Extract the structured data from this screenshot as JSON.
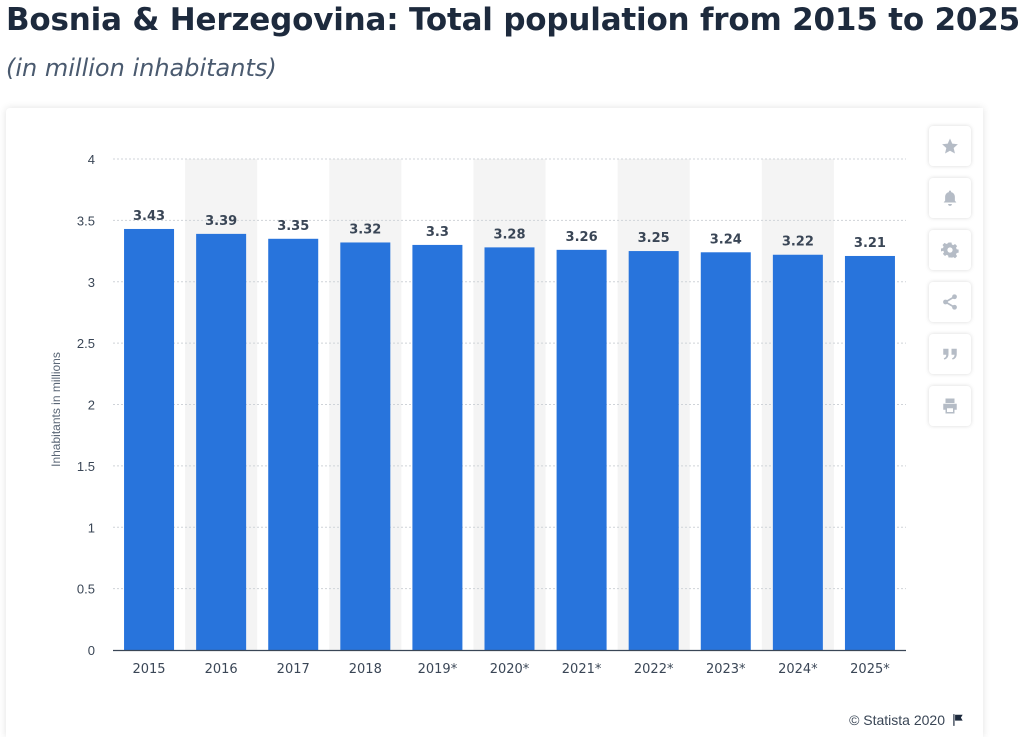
{
  "header": {
    "title": "Bosnia & Herzegovina: Total population from 2015 to 2025",
    "subtitle": "(in million inhabitants)"
  },
  "chart_data": {
    "type": "bar",
    "title": "Bosnia & Herzegovina: Total population from 2015 to 2025",
    "subtitle": "(in million inhabitants)",
    "xlabel": "",
    "ylabel": "Inhabitants in millions",
    "categories": [
      "2015",
      "2016",
      "2017",
      "2018",
      "2019*",
      "2020*",
      "2021*",
      "2022*",
      "2023*",
      "2024*",
      "2025*"
    ],
    "values": [
      3.43,
      3.39,
      3.35,
      3.32,
      3.3,
      3.28,
      3.26,
      3.25,
      3.24,
      3.22,
      3.21
    ],
    "data_labels": [
      "3.43",
      "3.39",
      "3.35",
      "3.32",
      "3.3",
      "3.28",
      "3.26",
      "3.25",
      "3.24",
      "3.22",
      "3.21"
    ],
    "ylim": [
      0,
      4
    ],
    "yticks": [
      0,
      0.5,
      1,
      1.5,
      2,
      2.5,
      3,
      3.5,
      4
    ],
    "ytick_labels": [
      "0",
      "0.5",
      "1",
      "1.5",
      "2",
      "2.5",
      "3",
      "3.5",
      "4"
    ],
    "grid": true,
    "bar_color": "#2874dc",
    "band_color": "#f4f4f4"
  },
  "sidebar": {
    "items": [
      {
        "icon": "star-icon"
      },
      {
        "icon": "bell-icon"
      },
      {
        "icon": "gear-icon"
      },
      {
        "icon": "share-icon"
      },
      {
        "icon": "quote-icon"
      },
      {
        "icon": "print-icon"
      }
    ]
  },
  "footer": {
    "credit": "© Statista 2020",
    "flag_icon": "flag-icon"
  }
}
